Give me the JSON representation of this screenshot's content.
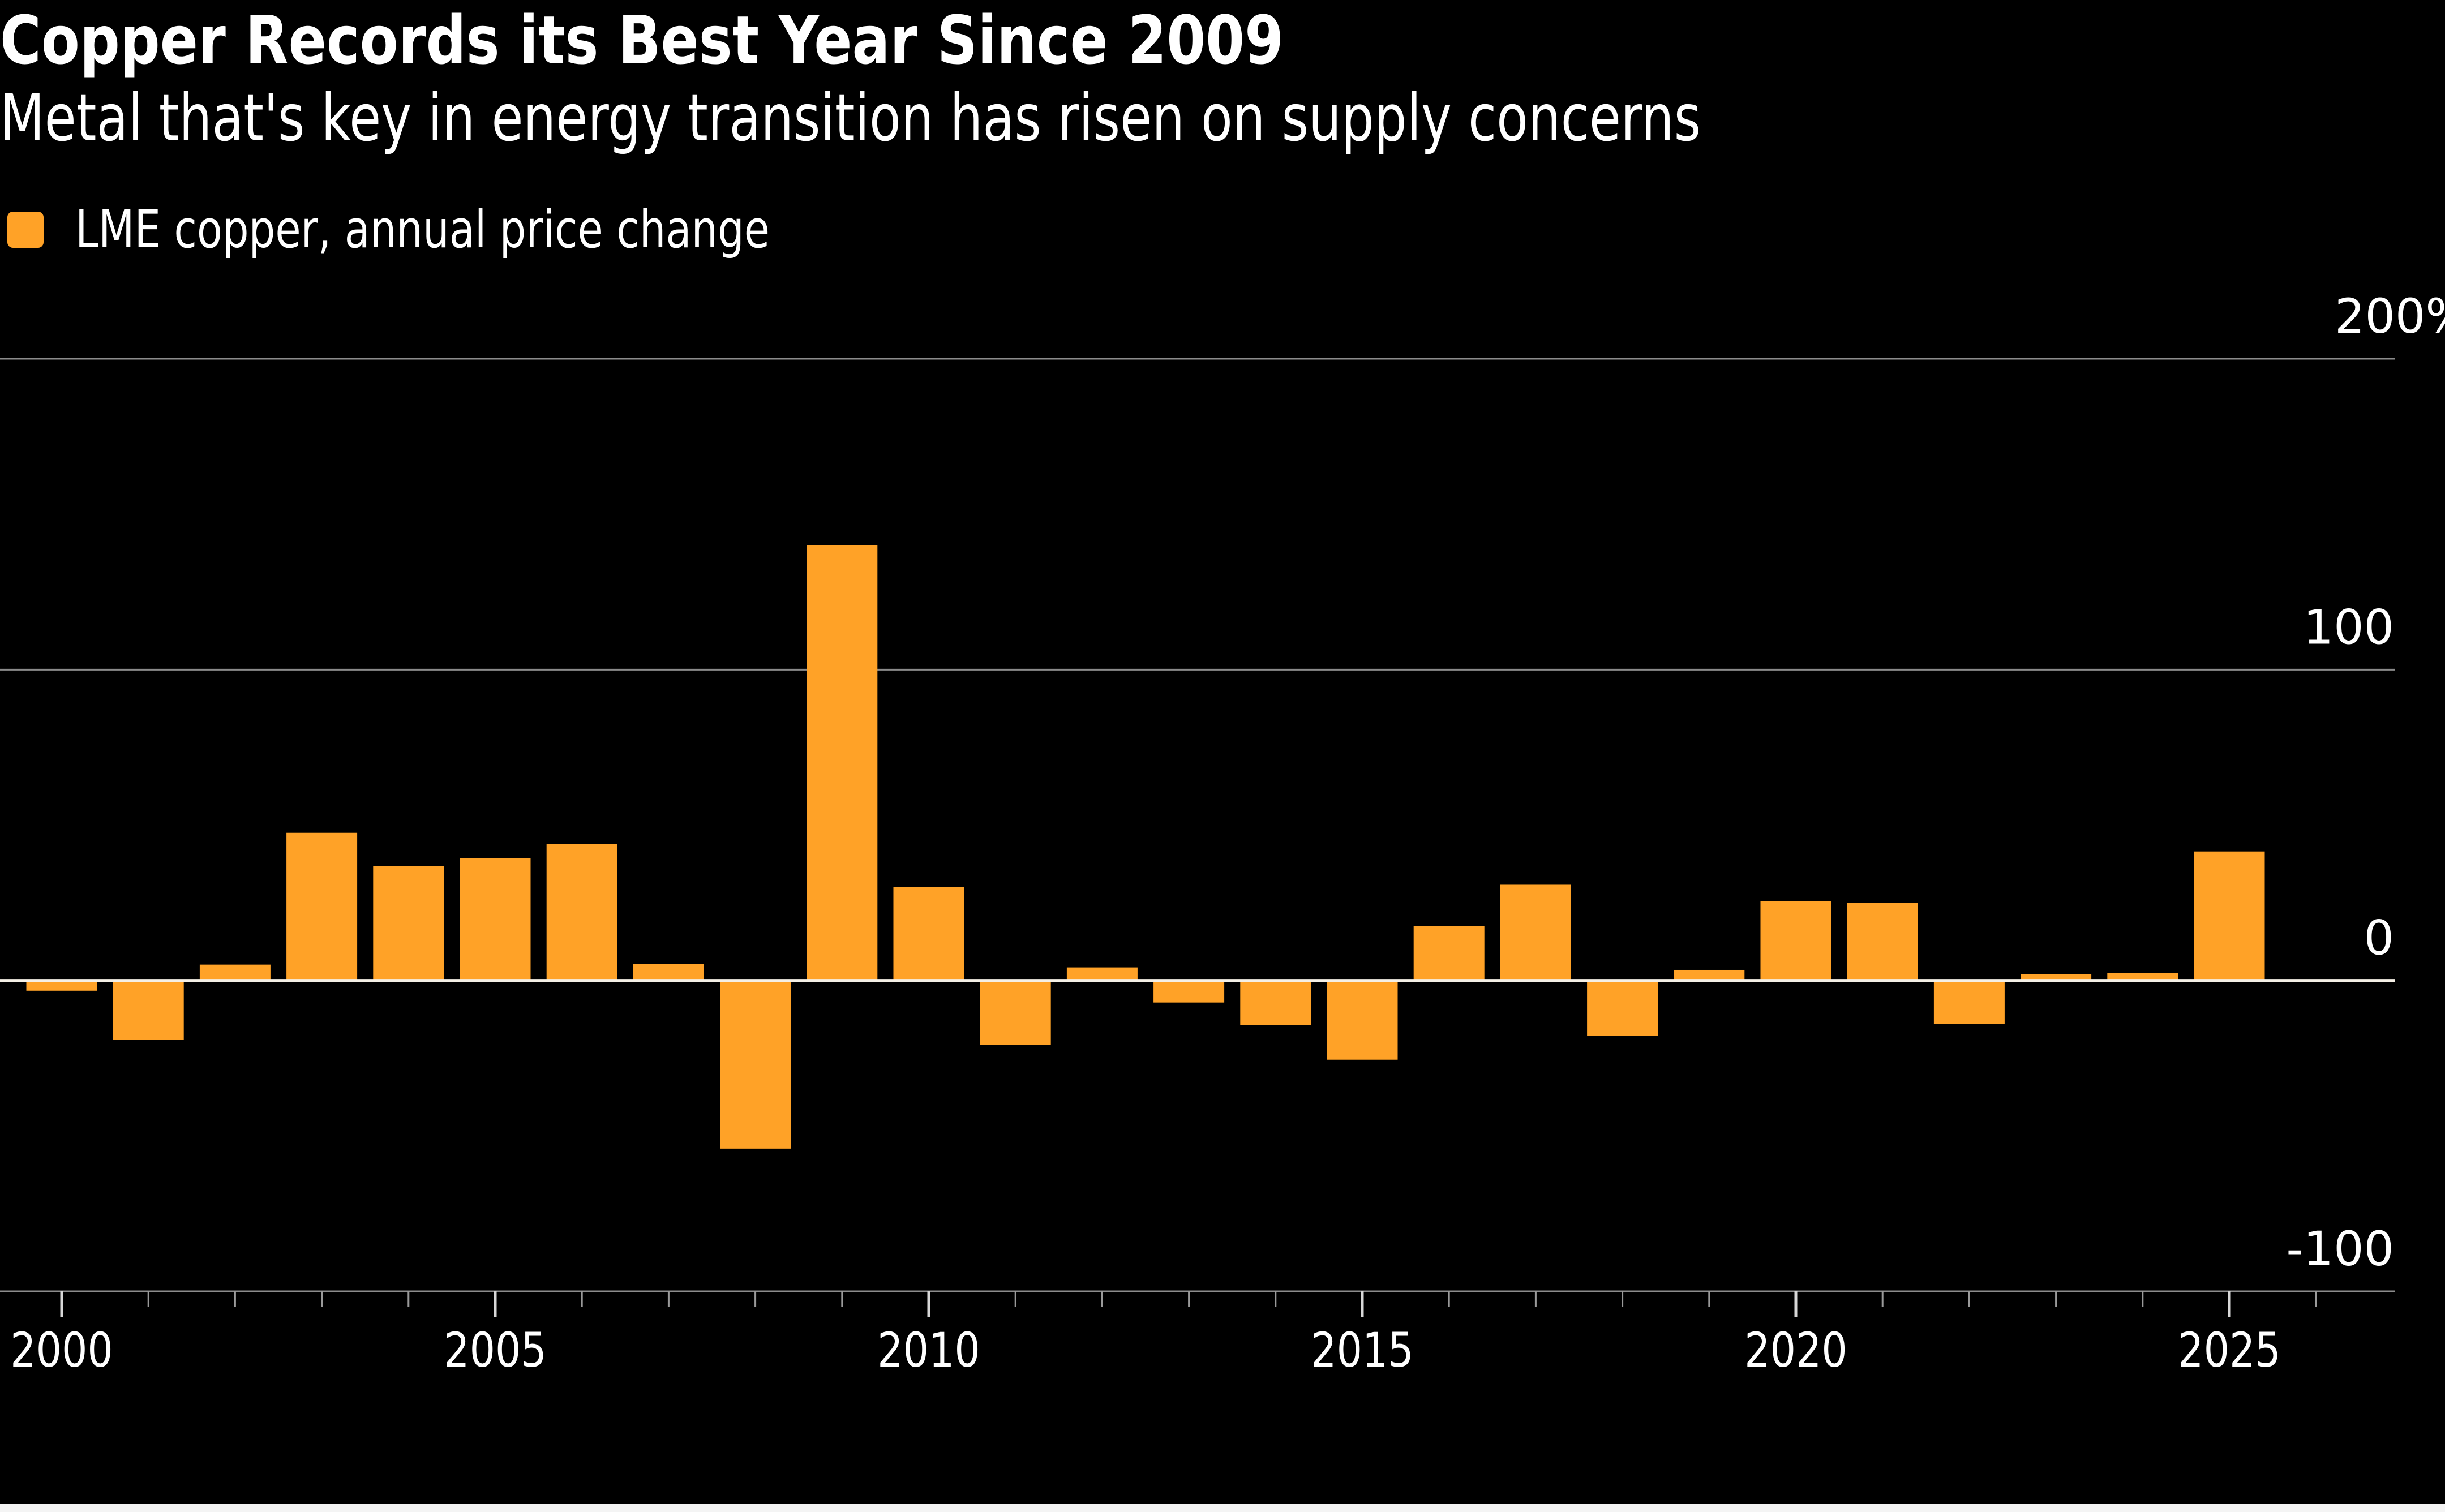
{
  "header": {
    "title": "Copper Records its Best Year Since 2009",
    "subtitle": "Metal that's key in energy transition has risen on supply concerns"
  },
  "legend": {
    "items": [
      {
        "label": "LME copper, annual price change",
        "color": "#ffa227"
      }
    ]
  },
  "colors": {
    "background": "#000000",
    "bar": "#ffa227",
    "gridline": "#8c8c8c",
    "zero_line": "#f5f0e6",
    "text": "#ffffff"
  },
  "chart_data": {
    "type": "bar",
    "title": "Copper Records its Best Year Since 2009",
    "subtitle": "Metal that's key in energy transition has risen on supply concerns",
    "xlabel": "",
    "ylabel": "",
    "y_unit": "%",
    "ylim": [
      -100,
      200
    ],
    "y_ticks": [
      200,
      100,
      0,
      -100
    ],
    "y_tick_labels": [
      "200%",
      "100",
      "0",
      "-100"
    ],
    "y_axis_side": "right",
    "grid": true,
    "legend_position": "top-left",
    "x_major_ticks": [
      2000,
      2005,
      2010,
      2015,
      2020,
      2025
    ],
    "x_tick_labels": [
      "2000",
      "2005",
      "2010",
      "2015",
      "2020",
      "2025"
    ],
    "x_minor_tick_step": 1,
    "x_range": [
      2000,
      2026
    ],
    "categories": [
      2000,
      2001,
      2002,
      2003,
      2004,
      2005,
      2006,
      2007,
      2008,
      2009,
      2010,
      2011,
      2012,
      2013,
      2014,
      2015,
      2016,
      2017,
      2018,
      2019,
      2020,
      2021,
      2022,
      2023,
      2024,
      2025
    ],
    "series": [
      {
        "name": "LME copper, annual price change",
        "values": [
          -3.3,
          -19.1,
          5.1,
          47.5,
          36.8,
          39.4,
          43.9,
          5.4,
          -54.1,
          140.1,
          30.0,
          -20.8,
          4.2,
          -7.1,
          -14.4,
          -25.5,
          17.5,
          30.8,
          -17.9,
          3.4,
          25.6,
          24.9,
          -13.9,
          2.1,
          2.4,
          41.5
        ]
      }
    ]
  }
}
